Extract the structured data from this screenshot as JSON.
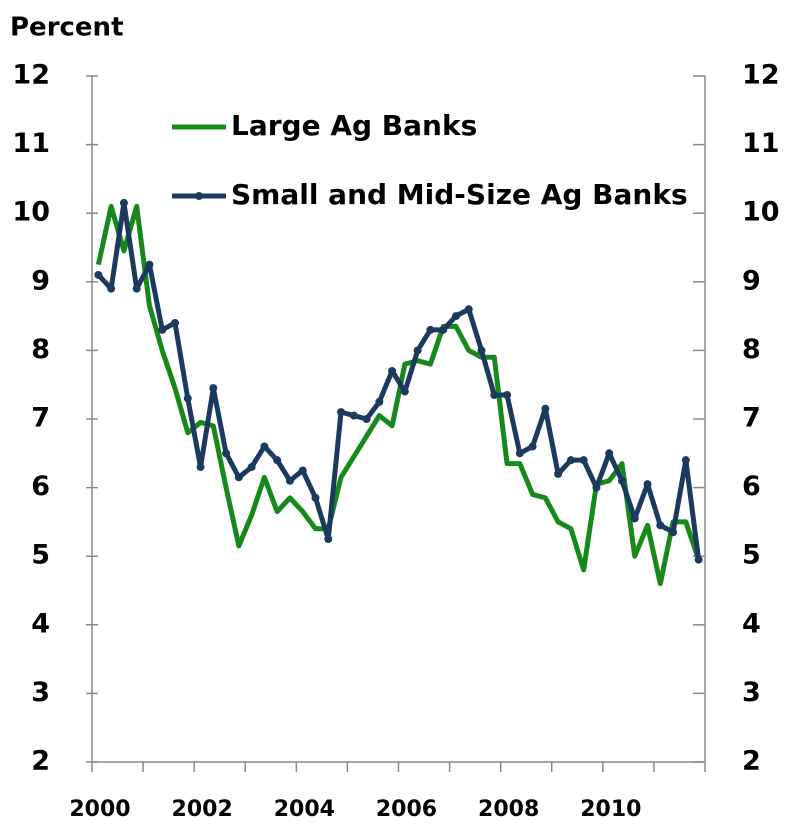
{
  "chart_data": {
    "type": "line",
    "y_label": "Percent",
    "x": [
      2000.125,
      2000.375,
      2000.625,
      2000.875,
      2001.125,
      2001.375,
      2001.625,
      2001.875,
      2002.125,
      2002.375,
      2002.625,
      2002.875,
      2003.125,
      2003.375,
      2003.625,
      2003.875,
      2004.125,
      2004.375,
      2004.625,
      2004.875,
      2005.125,
      2005.375,
      2005.625,
      2005.875,
      2006.125,
      2006.375,
      2006.625,
      2006.875,
      2007.125,
      2007.375,
      2007.625,
      2007.875,
      2008.125,
      2008.375,
      2008.625,
      2008.875,
      2009.125,
      2009.375,
      2009.625,
      2009.875,
      2010.125,
      2010.375,
      2010.625,
      2010.875,
      2011.125,
      2011.375,
      2011.625,
      2011.875
    ],
    "series": [
      {
        "name": "Large Ag Banks",
        "color": "#17891a",
        "marker": false,
        "values": [
          9.25,
          10.1,
          9.45,
          10.1,
          8.65,
          8.0,
          7.45,
          6.8,
          6.95,
          6.9,
          6.0,
          5.15,
          5.6,
          6.15,
          5.65,
          5.85,
          5.65,
          5.4,
          5.4,
          6.15,
          6.45,
          6.75,
          7.05,
          6.9,
          7.8,
          7.85,
          7.8,
          8.35,
          8.35,
          8.0,
          7.9,
          7.9,
          6.35,
          6.35,
          5.9,
          5.85,
          5.5,
          5.4,
          4.8,
          6.05,
          6.1,
          6.35,
          5.0,
          5.45,
          4.6,
          5.5,
          5.5,
          4.95
        ]
      },
      {
        "name": "Small and Mid-Size Ag Banks",
        "color": "#1c3a5f",
        "marker": true,
        "values": [
          9.1,
          8.9,
          10.15,
          8.9,
          9.25,
          8.3,
          8.4,
          7.3,
          6.3,
          7.45,
          6.5,
          6.15,
          6.3,
          6.6,
          6.4,
          6.1,
          6.25,
          5.85,
          5.25,
          7.1,
          7.05,
          7.0,
          7.25,
          7.7,
          7.4,
          8.0,
          8.3,
          8.3,
          8.5,
          8.6,
          8.0,
          7.35,
          7.35,
          6.5,
          6.6,
          7.15,
          6.2,
          6.4,
          6.4,
          6.0,
          6.5,
          6.1,
          5.55,
          6.05,
          5.45,
          5.35,
          6.4,
          4.95
        ]
      }
    ],
    "xlim": [
      2000,
      2012
    ],
    "xticks": [
      2000,
      2002,
      2004,
      2006,
      2008,
      2010
    ],
    "xminor_ticks": [
      2001,
      2003,
      2005,
      2007,
      2009,
      2011,
      2012
    ],
    "ylim": [
      2,
      12
    ],
    "yticks": [
      2,
      3,
      4,
      5,
      6,
      7,
      8,
      9,
      10,
      11,
      12
    ],
    "y2lim": [
      2,
      12
    ],
    "y2ticks": [
      2,
      3,
      4,
      5,
      6,
      7,
      8,
      9,
      10,
      11,
      12
    ],
    "legend": "top-left",
    "grid": false
  }
}
